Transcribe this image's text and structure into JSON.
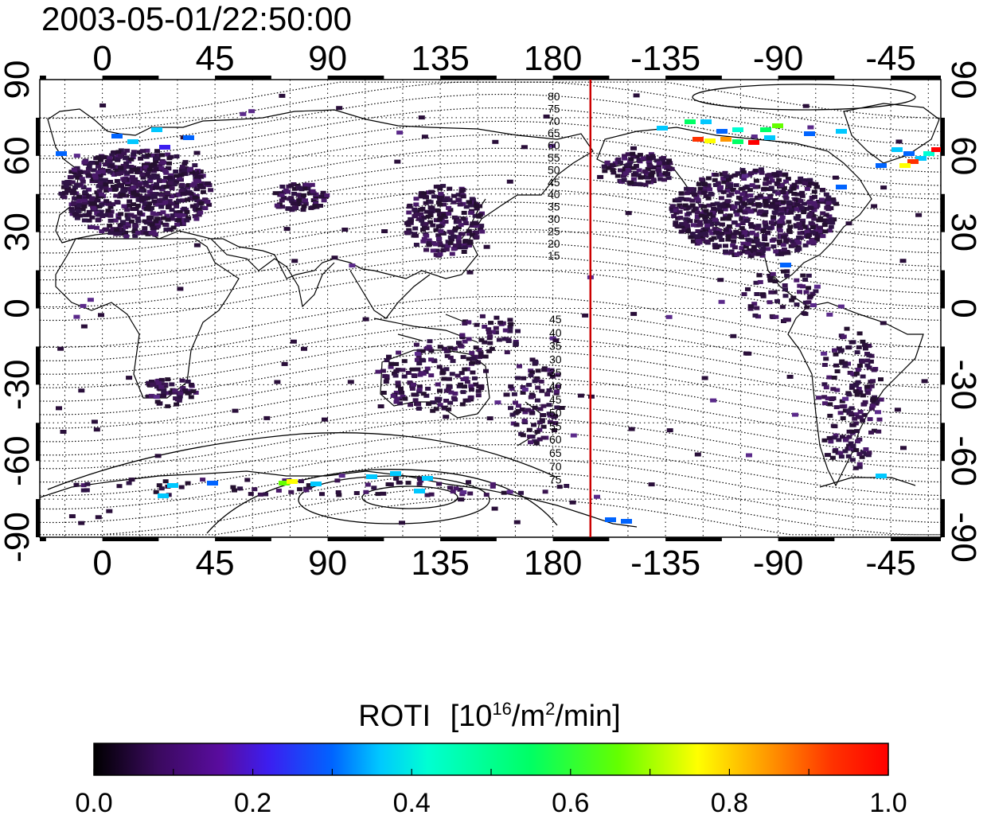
{
  "title": "2003-05-01/22:50:00",
  "map": {
    "x_ticks_top": [
      "0",
      "45",
      "90",
      "135",
      "180",
      "-135",
      "-90",
      "-45"
    ],
    "x_ticks_bottom": [
      "0",
      "45",
      "90",
      "135",
      "180",
      "-135",
      "-90",
      "-45"
    ],
    "y_ticks_left": [
      "90",
      "60",
      "30",
      "0",
      "-30",
      "-60",
      "-90"
    ],
    "y_ticks_right": [
      "90",
      "60",
      "30",
      "0",
      "-30",
      "-60",
      "-90"
    ],
    "lon_range": [
      -25,
      335
    ],
    "lat_range": [
      -90,
      90
    ],
    "grid": true,
    "terminator_longitude": 195,
    "terminator_color": "#cc0000",
    "north_contour_labels": [
      "80",
      "75",
      "70",
      "65",
      "60",
      "55",
      "50",
      "45",
      "40",
      "35",
      "30",
      "25",
      "20",
      "15"
    ],
    "south_contour_labels": [
      "45",
      "40",
      "35",
      "30",
      "35",
      "40",
      "45",
      "50",
      "55",
      "60",
      "65",
      "70",
      "75"
    ],
    "data_cell_color_low": "#2a0f3a"
  },
  "colorbar": {
    "title": "ROTI",
    "unit_base": "[10",
    "unit_exp1": "16",
    "unit_mid": "/m",
    "unit_exp2": "2",
    "unit_end": "/min]",
    "range": [
      0.0,
      1.0
    ],
    "tick_labels": [
      "0.0",
      "0.2",
      "0.4",
      "0.6",
      "0.8",
      "1.0"
    ],
    "colormap": [
      "#000000",
      "#3a0a5e",
      "#5a0ca0",
      "#3c1ef0",
      "#0064ff",
      "#00c8ff",
      "#00ffd2",
      "#00ff64",
      "#64ff00",
      "#ffff00",
      "#ff9600",
      "#ff3200",
      "#ff0000"
    ]
  }
}
